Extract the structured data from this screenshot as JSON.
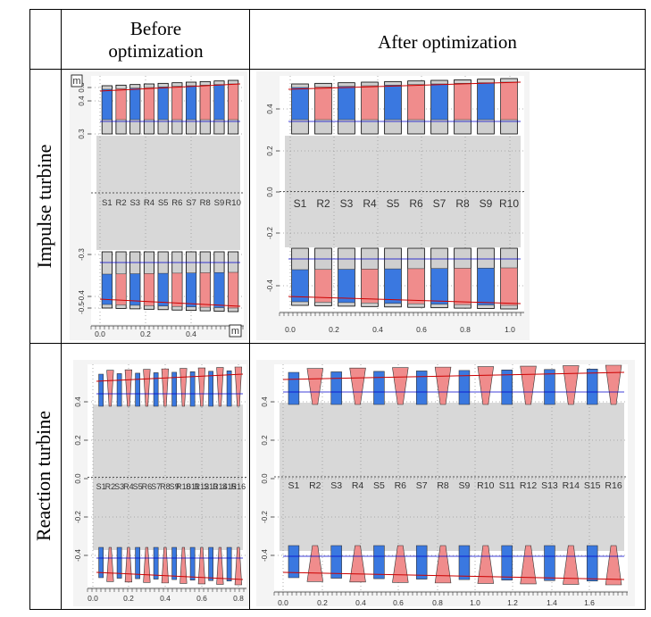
{
  "table": {
    "col_headers": {
      "before": "Before\noptimization",
      "after": "After optimization"
    },
    "row_labels": {
      "impulse": "Impulse turbine",
      "reaction": "Reaction turbine"
    },
    "unit_marker": "m"
  },
  "panels": {
    "impulse_before": {
      "stages": [
        "S1",
        "R2",
        "S3",
        "R4",
        "S5",
        "R6",
        "S7",
        "R8",
        "S9",
        "R10"
      ],
      "y_ticks": [
        "-0.5",
        "-0.4",
        "-0.3",
        "0.3",
        "0.4",
        "0.5"
      ],
      "x_ticks": [
        "0.0",
        "0.2",
        "0.4"
      ]
    },
    "impulse_after": {
      "stages": [
        "S1",
        "R2",
        "S3",
        "R4",
        "S5",
        "R6",
        "S7",
        "R8",
        "S9",
        "R10"
      ],
      "y_ticks": [
        "-0.4",
        "-0.2",
        "0.0",
        "0.2",
        "0.4"
      ],
      "x_ticks": [
        "0.0",
        "0.2",
        "0.4",
        "0.6",
        "0.8",
        "1.0"
      ]
    },
    "reaction_before": {
      "stages": [
        "S1",
        "R2",
        "S3",
        "R4",
        "S5",
        "R6",
        "S7",
        "R8",
        "S9",
        "R10",
        "S11",
        "R12",
        "S13",
        "R14",
        "S15",
        "R16"
      ],
      "y_ticks": [
        "-0.4",
        "-0.2",
        "0.0",
        "0.2",
        "0.4"
      ],
      "x_ticks": [
        "0.0",
        "0.2",
        "0.4",
        "0.6",
        "0.8"
      ]
    },
    "reaction_after": {
      "stages": [
        "S1",
        "R2",
        "S3",
        "R4",
        "S5",
        "R6",
        "S7",
        "R8",
        "S9",
        "R10",
        "S11",
        "R12",
        "S13",
        "R14",
        "S15",
        "R16"
      ],
      "y_ticks": [
        "-0.4",
        "-0.2",
        "0.0",
        "0.2",
        "0.4"
      ],
      "x_ticks": [
        "0.0",
        "0.2",
        "0.4",
        "0.6",
        "0.8",
        "1.0",
        "1.2",
        "1.4",
        "1.6"
      ]
    }
  },
  "colors": {
    "stator": "#3a78e0",
    "rotor": "#f08c8c",
    "casing": "#d8d8d8",
    "hub_line": "#cc0000",
    "blade_line": "#0000cc"
  }
}
